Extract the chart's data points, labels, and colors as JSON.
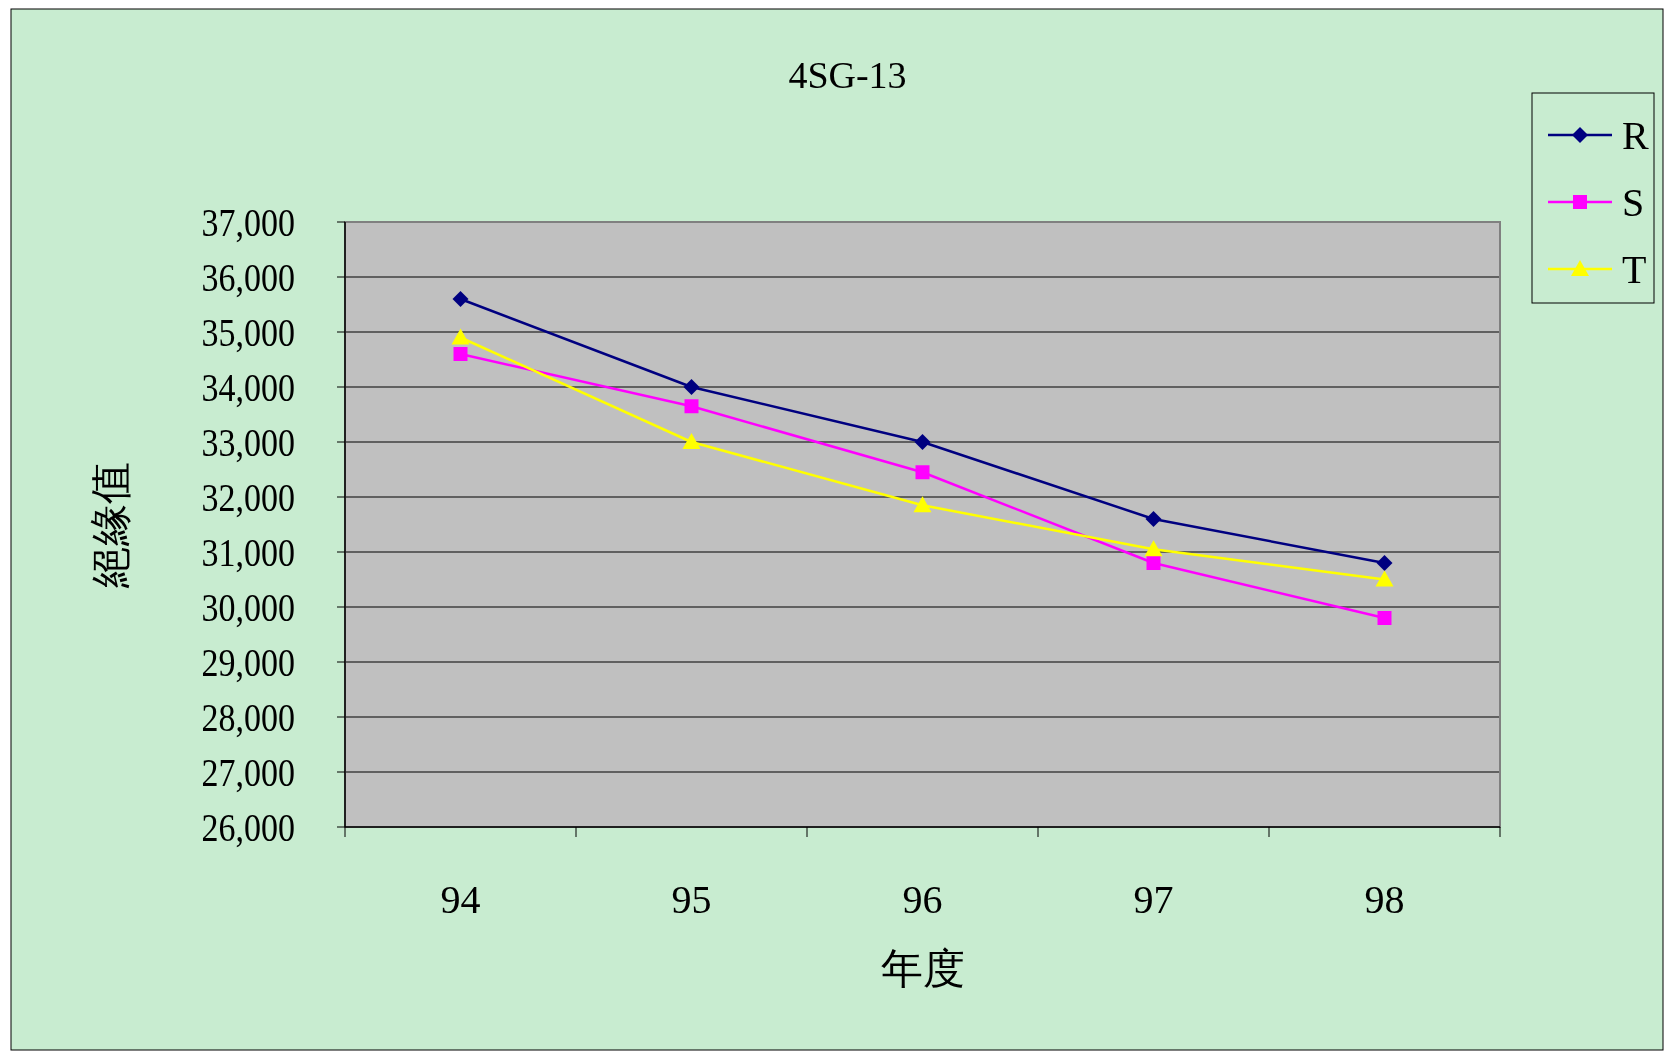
{
  "chart_data": {
    "type": "line",
    "title": "4SG-13",
    "xlabel": "年度",
    "ylabel": "絕緣值",
    "categories": [
      "94",
      "95",
      "96",
      "97",
      "98"
    ],
    "series": [
      {
        "name": "R",
        "color": "#000080",
        "marker": "diamond",
        "values": [
          35600,
          34000,
          33000,
          31600,
          30800
        ]
      },
      {
        "name": "S",
        "color": "#ff00ff",
        "marker": "square",
        "values": [
          34600,
          33650,
          32450,
          30800,
          29800
        ]
      },
      {
        "name": "T",
        "color": "#ffff00",
        "marker": "triangle",
        "values": [
          34900,
          33000,
          31850,
          31050,
          30500
        ]
      }
    ],
    "ylim": [
      26000,
      37000
    ],
    "yticks": [
      {
        "value": 26000,
        "label": "26,000"
      },
      {
        "value": 27000,
        "label": "27,000"
      },
      {
        "value": 28000,
        "label": "28,000"
      },
      {
        "value": 29000,
        "label": "29,000"
      },
      {
        "value": 30000,
        "label": "30,000"
      },
      {
        "value": 31000,
        "label": "31,000"
      },
      {
        "value": 32000,
        "label": "32,000"
      },
      {
        "value": 33000,
        "label": "33,000"
      },
      {
        "value": 34000,
        "label": "34,000"
      },
      {
        "value": 35000,
        "label": "35,000"
      },
      {
        "value": 36000,
        "label": "36,000"
      },
      {
        "value": 37000,
        "label": "37,000"
      }
    ],
    "grid": "y",
    "legend": "right"
  }
}
